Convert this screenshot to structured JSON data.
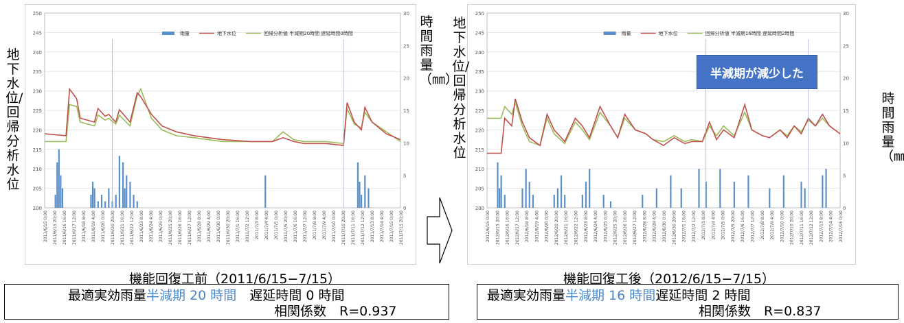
{
  "left_panel": {
    "ylabel_left": "地下水位/回帰分析水位",
    "ylabel_right": "時間雨量（㎜）",
    "caption": "機能回復工前（2011/6/15−7/15）",
    "box_line1_prefix": "最適実効雨量",
    "box_line1_highlight": "半減期 20 時間",
    "box_line1_suffix": "遅延時間 0 時間",
    "box_line2": "相関係数　R=0.937"
  },
  "right_panel": {
    "ylabel_left": "地下水位/回帰分析水位",
    "ylabel_right": "時間雨量（㎜）",
    "caption": "機能回復工後（2012/6/15−7/15）",
    "box_line1_prefix": "最適実効雨量",
    "box_line1_highlight": "半減期 16 時間",
    "box_line1_suffix": "遅延時間 2 時間",
    "box_line2": "相関係数　R=0.837",
    "badge": "半減期が減少した"
  },
  "colors": {
    "rain": "#5b8fc9",
    "groundwater": "#c0504d",
    "regression": "#9bbb59",
    "badge": "#4472c4",
    "highlight": "#4a86c8"
  },
  "chart_data": [
    {
      "type": "line",
      "legend": [
        "雨量",
        "地下水位",
        "回帰分析値 半減期20時間 遅延時間0時間"
      ],
      "ylim": [
        200,
        250
      ],
      "y2lim": [
        0,
        30
      ],
      "yticks": [
        200,
        205,
        210,
        215,
        220,
        225,
        230,
        235,
        240,
        245,
        250
      ],
      "y2ticks": [
        0,
        5,
        10,
        15,
        20,
        25,
        30
      ],
      "xticks": [
        "2011/6/15 0:00",
        "2011/6/15 20:00",
        "2011/6/16 16:00",
        "2011/6/17 12:00",
        "2011/6/18 8:00",
        "2011/6/19 4:00",
        "2011/6/20 0:00",
        "2011/6/20 20:00",
        "2011/6/21 16:00",
        "2011/6/22 12:00",
        "2011/6/23 8:00",
        "2011/6/24 4:00",
        "2011/6/25 0:00",
        "2011/6/25 20:00",
        "2011/6/26 16:00",
        "2011/6/27 12:00",
        "2011/6/28 8:00",
        "2011/6/29 4:00",
        "2011/6/30 0:00",
        "2011/6/30 20:00",
        "2011/7/1 16:00",
        "2011/7/2 12:00",
        "2011/7/3 8:00",
        "2011/7/4 4:00",
        "2011/7/5 0:00",
        "2011/7/5 20:00",
        "2011/7/6 16:00",
        "2011/7/7 12:00",
        "2011/7/8 8:00",
        "2011/7/9 4:00",
        "2011/7/10 0:00",
        "2011/7/10 20:00",
        "2011/7/11 16:00",
        "2011/7/12 12:00",
        "2011/7/13 8:00",
        "2011/7/14 4:00",
        "2011/7/15 0:00",
        "2011/7/15 20:00"
      ],
      "series": [
        {
          "name": "地下水位",
          "x": [
            0,
            0.06,
            0.07,
            0.09,
            0.1,
            0.14,
            0.15,
            0.17,
            0.18,
            0.2,
            0.21,
            0.24,
            0.26,
            0.27,
            0.3,
            0.33,
            0.37,
            0.42,
            0.5,
            0.58,
            0.64,
            0.67,
            0.7,
            0.73,
            0.79,
            0.84,
            0.85,
            0.87,
            0.89,
            0.9,
            0.92,
            0.96,
            1.0
          ],
          "y": [
            219,
            218.5,
            230.5,
            228,
            223,
            222,
            225.5,
            223.5,
            224,
            222,
            225.2,
            222,
            229.5,
            228.5,
            224,
            221,
            219.5,
            218.5,
            217.5,
            217,
            217,
            218,
            217,
            216.5,
            216.5,
            216,
            227,
            222,
            220,
            225.8,
            222,
            219,
            217.5
          ]
        },
        {
          "name": "回帰分析値",
          "x": [
            0,
            0.06,
            0.07,
            0.09,
            0.1,
            0.14,
            0.15,
            0.17,
            0.18,
            0.2,
            0.21,
            0.24,
            0.26,
            0.27,
            0.3,
            0.33,
            0.37,
            0.42,
            0.5,
            0.58,
            0.64,
            0.67,
            0.7,
            0.73,
            0.79,
            0.84,
            0.85,
            0.87,
            0.89,
            0.9,
            0.92,
            0.96,
            1.0
          ],
          "y": [
            217,
            217,
            226.5,
            226,
            222,
            221,
            223.8,
            222.5,
            223,
            221.5,
            223.8,
            221,
            228.8,
            230.5,
            223,
            220,
            218.5,
            218,
            217,
            217,
            217,
            219.5,
            217.5,
            217,
            217,
            216.5,
            225.5,
            221.5,
            220.5,
            224.5,
            222,
            219.5,
            217
          ]
        },
        {
          "name": "雨量",
          "x": [
            0.03,
            0.035,
            0.04,
            0.045,
            0.05,
            0.13,
            0.135,
            0.14,
            0.15,
            0.16,
            0.17,
            0.18,
            0.19,
            0.2,
            0.21,
            0.22,
            0.225,
            0.23,
            0.24,
            0.25,
            0.26,
            0.62,
            0.88,
            0.885,
            0.89,
            0.9,
            0.91
          ],
          "values": [
            2,
            7,
            9,
            5,
            3,
            2,
            4,
            3,
            1,
            2,
            1,
            3,
            1,
            2,
            8,
            7,
            3,
            5,
            4,
            2,
            1,
            5,
            7,
            4,
            2,
            5,
            3
          ]
        }
      ]
    },
    {
      "type": "line",
      "legend": [
        "雨量",
        "地下水位",
        "回帰分析値 半減期16時間 遅延時間2時間"
      ],
      "ylim": [
        200,
        250
      ],
      "y2lim": [
        0,
        30
      ],
      "yticks": [
        200,
        205,
        210,
        215,
        220,
        225,
        230,
        235,
        240,
        245,
        250
      ],
      "y2ticks": [
        0,
        5,
        10,
        15,
        20,
        25,
        30
      ],
      "xticks": [
        "2012/6/15 0:00",
        "2012/6/15 20:00",
        "2012/6/16 16:00",
        "2012/6/17 12:00",
        "2012/6/18 8:00",
        "2012/6/19 4:00",
        "2012/6/20 0:00",
        "2012/6/20 20:00",
        "2012/6/21 16:00",
        "2012/6/22 12:00",
        "2012/6/23 8:00",
        "2012/6/24 4:00",
        "2012/6/25 0:00",
        "2012/6/25 20:00",
        "2012/6/26 16:00",
        "2012/6/27 12:00",
        "2012/6/28 8:00",
        "2012/6/29 4:00",
        "2012/6/30 0:00",
        "2012/6/30 20:00",
        "2012/7/1 16:00",
        "2012/7/2 12:00",
        "2012/7/3 8:00",
        "2012/7/4 4:00",
        "2012/7/5 0:00",
        "2012/7/5 20:00",
        "2012/7/6 16:00",
        "2012/7/7 12:00",
        "2012/7/8 8:00",
        "2012/7/9 4:00",
        "2012/7/10 0:00",
        "2012/7/10 20:00",
        "2012/7/11 16:00",
        "2012/7/12 12:00",
        "2012/7/13 8:00",
        "2012/7/14 4:00",
        "2012/7/15 0:00"
      ],
      "series": [
        {
          "name": "地下水位",
          "x": [
            0,
            0.04,
            0.05,
            0.07,
            0.08,
            0.1,
            0.12,
            0.15,
            0.17,
            0.19,
            0.22,
            0.25,
            0.27,
            0.29,
            0.32,
            0.35,
            0.37,
            0.39,
            0.42,
            0.45,
            0.47,
            0.5,
            0.53,
            0.56,
            0.58,
            0.61,
            0.63,
            0.65,
            0.67,
            0.7,
            0.73,
            0.75,
            0.78,
            0.8,
            0.83,
            0.85,
            0.87,
            0.89,
            0.91,
            0.93,
            0.95,
            0.97,
            1.0
          ],
          "y": [
            214,
            214,
            223,
            221,
            228,
            222,
            218,
            216,
            224,
            220,
            217,
            223,
            221,
            218,
            226,
            221,
            218,
            224,
            220,
            219,
            217.5,
            216,
            218,
            216.5,
            217,
            217,
            222,
            217.5,
            220,
            218,
            226.5,
            220,
            218.5,
            218,
            220,
            218,
            221,
            219,
            223,
            221,
            224,
            221,
            219
          ]
        },
        {
          "name": "回帰分析値",
          "x": [
            0,
            0.04,
            0.05,
            0.07,
            0.08,
            0.1,
            0.12,
            0.15,
            0.17,
            0.19,
            0.22,
            0.25,
            0.27,
            0.29,
            0.32,
            0.35,
            0.37,
            0.39,
            0.42,
            0.45,
            0.47,
            0.5,
            0.53,
            0.56,
            0.58,
            0.61,
            0.63,
            0.65,
            0.67,
            0.7,
            0.73,
            0.75,
            0.78,
            0.8,
            0.83,
            0.85,
            0.87,
            0.89,
            0.91,
            0.93,
            0.95,
            0.97,
            1.0
          ],
          "y": [
            223,
            223,
            226,
            224,
            227,
            221,
            217,
            216,
            223,
            219,
            216.5,
            222,
            220,
            217.5,
            224.5,
            221,
            218,
            223,
            220,
            219,
            217.5,
            217,
            218.5,
            217,
            217.5,
            217,
            221,
            218.5,
            221,
            218.5,
            224.5,
            220,
            218.5,
            218,
            220,
            218.5,
            221,
            219.5,
            222.5,
            221,
            223,
            221,
            219
          ]
        },
        {
          "name": "雨量",
          "x": [
            0.03,
            0.035,
            0.04,
            0.05,
            0.1,
            0.11,
            0.12,
            0.13,
            0.19,
            0.2,
            0.21,
            0.22,
            0.27,
            0.28,
            0.29,
            0.33,
            0.35,
            0.44,
            0.48,
            0.52,
            0.55,
            0.6,
            0.62,
            0.66,
            0.7,
            0.74,
            0.8,
            0.84,
            0.89,
            0.9,
            0.95,
            0.96
          ],
          "values": [
            7,
            3,
            5,
            2,
            3,
            6,
            4,
            2,
            2,
            3,
            5,
            2,
            2,
            4,
            6,
            2,
            1,
            2,
            3,
            5,
            3,
            6,
            4,
            6,
            4,
            5,
            3,
            5,
            4,
            3,
            5,
            6
          ]
        }
      ]
    }
  ]
}
